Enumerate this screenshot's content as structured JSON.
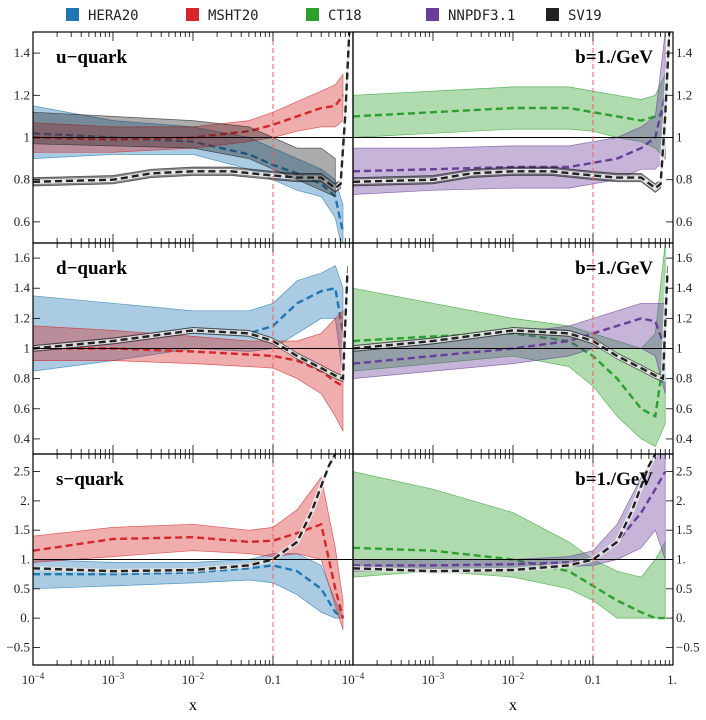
{
  "legend": [
    {
      "name": "HERA20",
      "color": "#1f77b4"
    },
    {
      "name": "MSHT20",
      "color": "#d62728"
    },
    {
      "name": "CT18",
      "color": "#2ca02c"
    },
    {
      "name": "NNPDF3.1",
      "color": "#6a3d9a"
    },
    {
      "name": "SV19",
      "color": "#222222"
    }
  ],
  "colors": {
    "HERA20": "#1f77b4",
    "MSHT20": "#d62728",
    "CT18": "#2ca02c",
    "NNPDF3.1": "#6a3d9a",
    "SV19": "#222222",
    "reference_line": "#000000",
    "vertical_marker": "#e06666"
  },
  "xlabel": "x",
  "panel_labels": {
    "u": "u−quark",
    "d": "d−quark",
    "s": "s−quark",
    "b": "b=1./GeV"
  },
  "x_tick_labels": [
    "10",
    "10",
    "10",
    "0.1",
    "1."
  ],
  "x_tick_exponents": [
    "−4",
    "−3",
    "−2",
    "",
    ""
  ],
  "chart_data": [
    {
      "type": "line",
      "panel": "u-quark, left",
      "x_scale": "log",
      "xlim": [
        0.0001,
        1
      ],
      "ylim": [
        0.5,
        1.5
      ],
      "y_ticks": [
        "0.6",
        "0.8",
        "1",
        "1.2",
        "1.4"
      ],
      "reference_y": 1,
      "vertical_line_x": 0.1,
      "series": [
        {
          "name": "HERA20",
          "x": [
            0.0001,
            0.001,
            0.01,
            0.05,
            0.1,
            0.2,
            0.4,
            0.6,
            0.75
          ],
          "y": [
            1.02,
            1.0,
            0.98,
            0.92,
            0.87,
            0.83,
            0.78,
            0.72,
            0.55
          ],
          "lo": [
            0.9,
            0.92,
            0.92,
            0.85,
            0.8,
            0.75,
            0.72,
            0.62,
            0.45
          ],
          "hi": [
            1.15,
            1.08,
            1.05,
            1.0,
            0.95,
            0.9,
            0.85,
            0.8,
            0.68
          ]
        },
        {
          "name": "MSHT20",
          "x": [
            0.0001,
            0.001,
            0.01,
            0.05,
            0.1,
            0.2,
            0.4,
            0.6,
            0.75
          ],
          "y": [
            1.0,
            0.99,
            1.0,
            1.03,
            1.06,
            1.1,
            1.14,
            1.15,
            1.2
          ],
          "lo": [
            0.93,
            0.93,
            0.95,
            0.98,
            1.0,
            1.03,
            1.05,
            1.05,
            1.08
          ],
          "hi": [
            1.07,
            1.05,
            1.05,
            1.08,
            1.12,
            1.17,
            1.22,
            1.25,
            1.3
          ]
        },
        {
          "name": "SV19",
          "x": [
            0.0001,
            0.001,
            0.003,
            0.01,
            0.03,
            0.1,
            0.2,
            0.4,
            0.6,
            0.7,
            0.8,
            0.9
          ],
          "y": [
            0.79,
            0.8,
            0.83,
            0.84,
            0.84,
            0.82,
            0.81,
            0.81,
            0.76,
            0.78,
            1.1,
            1.5
          ],
          "lo": [
            0.77,
            0.78,
            0.81,
            0.82,
            0.82,
            0.8,
            0.79,
            0.79,
            0.74,
            0.76,
            1.05,
            1.45
          ],
          "hi": [
            0.81,
            0.82,
            0.85,
            0.86,
            0.86,
            0.84,
            0.83,
            0.83,
            0.78,
            0.8,
            1.15,
            1.55
          ]
        },
        {
          "name": "SV19 band",
          "x": [
            0.0001,
            0.001,
            0.01,
            0.05,
            0.1,
            0.2,
            0.4,
            0.6
          ],
          "y": [
            1.06,
            1.04,
            1.02,
            0.98,
            0.93,
            0.88,
            0.87,
            0.82
          ],
          "lo": [
            0.97,
            0.96,
            0.95,
            0.9,
            0.85,
            0.8,
            0.75,
            0.72
          ],
          "hi": [
            1.12,
            1.1,
            1.08,
            1.05,
            1.0,
            0.95,
            0.95,
            0.9
          ]
        }
      ]
    },
    {
      "type": "line",
      "panel": "u-quark, right",
      "x_scale": "log",
      "xlim": [
        0.0001,
        1
      ],
      "ylim": [
        0.5,
        1.5
      ],
      "y_ticks": [
        "0.6",
        "0.8",
        "1",
        "1.2",
        "1.4"
      ],
      "reference_y": 1,
      "vertical_line_x": 0.1,
      "series": [
        {
          "name": "CT18",
          "x": [
            0.0001,
            0.001,
            0.01,
            0.05,
            0.1,
            0.2,
            0.4,
            0.6,
            0.8
          ],
          "y": [
            1.1,
            1.12,
            1.14,
            1.14,
            1.12,
            1.1,
            1.08,
            1.1,
            1.12
          ],
          "lo": [
            1.0,
            1.02,
            1.04,
            1.04,
            1.03,
            1.0,
            0.98,
            0.95,
            0.9
          ],
          "hi": [
            1.2,
            1.22,
            1.24,
            1.24,
            1.22,
            1.2,
            1.18,
            1.2,
            1.3
          ]
        },
        {
          "name": "NNPDF3.1",
          "x": [
            0.0001,
            0.001,
            0.01,
            0.05,
            0.1,
            0.2,
            0.4,
            0.6,
            0.8
          ],
          "y": [
            0.84,
            0.85,
            0.86,
            0.86,
            0.88,
            0.9,
            0.95,
            1.0,
            1.2
          ],
          "lo": [
            0.73,
            0.75,
            0.76,
            0.76,
            0.78,
            0.8,
            0.85,
            0.85,
            0.9
          ],
          "hi": [
            0.95,
            0.95,
            0.96,
            0.96,
            0.98,
            1.0,
            1.05,
            1.1,
            1.5
          ]
        },
        {
          "name": "SV19",
          "x": [
            0.0001,
            0.001,
            0.003,
            0.01,
            0.03,
            0.1,
            0.2,
            0.4,
            0.6,
            0.7,
            0.8,
            0.9
          ],
          "y": [
            0.79,
            0.8,
            0.83,
            0.84,
            0.84,
            0.82,
            0.81,
            0.81,
            0.76,
            0.78,
            1.1,
            1.5
          ],
          "lo": [
            0.77,
            0.78,
            0.81,
            0.82,
            0.82,
            0.8,
            0.79,
            0.79,
            0.74,
            0.76,
            1.05,
            1.45
          ],
          "hi": [
            0.81,
            0.82,
            0.85,
            0.86,
            0.86,
            0.84,
            0.83,
            0.83,
            0.78,
            0.8,
            1.15,
            1.55
          ]
        }
      ]
    },
    {
      "type": "line",
      "panel": "d-quark, left",
      "x_scale": "log",
      "xlim": [
        0.0001,
        1
      ],
      "ylim": [
        0.3,
        1.7
      ],
      "y_ticks": [
        "0.4",
        "0.6",
        "0.8",
        "1",
        "1.2",
        "1.4",
        "1.6"
      ],
      "reference_y": 1,
      "vertical_line_x": 0.1,
      "series": [
        {
          "name": "HERA20",
          "x": [
            0.0001,
            0.001,
            0.01,
            0.05,
            0.1,
            0.2,
            0.4,
            0.6,
            0.75
          ],
          "y": [
            1.0,
            1.05,
            1.12,
            1.1,
            1.15,
            1.3,
            1.38,
            1.4,
            1.1
          ],
          "lo": [
            0.85,
            0.92,
            1.0,
            0.98,
            1.0,
            1.1,
            1.2,
            1.2,
            0.8
          ],
          "hi": [
            1.35,
            1.3,
            1.25,
            1.25,
            1.3,
            1.45,
            1.5,
            1.55,
            1.4
          ]
        },
        {
          "name": "MSHT20",
          "x": [
            0.0001,
            0.001,
            0.01,
            0.05,
            0.1,
            0.2,
            0.4,
            0.6,
            0.75
          ],
          "y": [
            1.0,
            1.0,
            0.98,
            0.96,
            0.95,
            0.92,
            0.85,
            0.78,
            0.75
          ],
          "lo": [
            0.92,
            0.92,
            0.9,
            0.88,
            0.87,
            0.8,
            0.7,
            0.55,
            0.45
          ],
          "hi": [
            1.15,
            1.12,
            1.08,
            1.05,
            1.05,
            1.05,
            1.1,
            1.2,
            1.25
          ]
        },
        {
          "name": "SV19",
          "x": [
            0.0001,
            0.001,
            0.01,
            0.05,
            0.1,
            0.2,
            0.4,
            0.6,
            0.75,
            0.85
          ],
          "y": [
            1.0,
            1.05,
            1.12,
            1.1,
            1.05,
            0.95,
            0.87,
            0.82,
            0.8,
            1.5
          ],
          "lo": [
            0.98,
            1.03,
            1.1,
            1.08,
            1.03,
            0.93,
            0.85,
            0.8,
            0.78,
            1.45
          ],
          "hi": [
            1.02,
            1.07,
            1.14,
            1.12,
            1.07,
            0.97,
            0.89,
            0.84,
            0.82,
            1.55
          ]
        }
      ]
    },
    {
      "type": "line",
      "panel": "d-quark, right",
      "x_scale": "log",
      "xlim": [
        0.0001,
        1
      ],
      "ylim": [
        0.3,
        1.7
      ],
      "y_ticks": [
        "0.4",
        "0.6",
        "0.8",
        "1",
        "1.2",
        "1.4",
        "1.6"
      ],
      "reference_y": 1,
      "vertical_line_x": 0.1,
      "series": [
        {
          "name": "CT18",
          "x": [
            0.0001,
            0.001,
            0.01,
            0.05,
            0.1,
            0.2,
            0.4,
            0.6,
            0.8
          ],
          "y": [
            1.05,
            1.08,
            1.1,
            1.05,
            0.95,
            0.8,
            0.6,
            0.55,
            1.0
          ],
          "lo": [
            0.85,
            0.9,
            0.95,
            0.88,
            0.75,
            0.55,
            0.4,
            0.35,
            0.5
          ],
          "hi": [
            1.4,
            1.3,
            1.2,
            1.15,
            1.1,
            1.05,
            1.0,
            1.1,
            1.7
          ]
        },
        {
          "name": "NNPDF3.1",
          "x": [
            0.0001,
            0.001,
            0.01,
            0.05,
            0.1,
            0.2,
            0.4,
            0.6,
            0.8
          ],
          "y": [
            0.9,
            0.95,
            1.0,
            1.05,
            1.1,
            1.15,
            1.2,
            1.18,
            1.0
          ],
          "lo": [
            0.8,
            0.85,
            0.9,
            0.95,
            1.0,
            1.0,
            1.0,
            0.95,
            0.7
          ],
          "hi": [
            1.0,
            1.05,
            1.1,
            1.15,
            1.2,
            1.25,
            1.3,
            1.3,
            1.3
          ]
        },
        {
          "name": "SV19",
          "x": [
            0.0001,
            0.001,
            0.01,
            0.05,
            0.1,
            0.2,
            0.4,
            0.6,
            0.75,
            0.85
          ],
          "y": [
            1.0,
            1.05,
            1.12,
            1.1,
            1.05,
            0.95,
            0.87,
            0.82,
            0.8,
            1.5
          ],
          "lo": [
            0.98,
            1.03,
            1.1,
            1.08,
            1.03,
            0.93,
            0.85,
            0.8,
            0.78,
            1.45
          ],
          "hi": [
            1.02,
            1.07,
            1.14,
            1.12,
            1.07,
            0.97,
            0.89,
            0.84,
            0.82,
            1.55
          ]
        }
      ]
    },
    {
      "type": "line",
      "panel": "s-quark, left",
      "x_scale": "log",
      "xlim": [
        0.0001,
        1
      ],
      "ylim": [
        -0.8,
        2.8
      ],
      "y_ticks": [
        "−0.5",
        "0.",
        "0.5",
        "1.",
        "1.5",
        "2.",
        "2.5"
      ],
      "reference_y": 1,
      "vertical_line_x": 0.1,
      "series": [
        {
          "name": "HERA20",
          "x": [
            0.0001,
            0.001,
            0.01,
            0.05,
            0.1,
            0.2,
            0.4,
            0.6,
            0.75
          ],
          "y": [
            0.75,
            0.75,
            0.78,
            0.85,
            0.9,
            0.8,
            0.5,
            0.1,
            0.0
          ],
          "lo": [
            0.5,
            0.55,
            0.6,
            0.65,
            0.6,
            0.4,
            0.1,
            0.0,
            0.0
          ],
          "hi": [
            1.0,
            0.95,
            0.95,
            1.0,
            1.1,
            1.1,
            0.9,
            0.3,
            0.0
          ]
        },
        {
          "name": "MSHT20",
          "x": [
            0.0001,
            0.001,
            0.01,
            0.05,
            0.1,
            0.2,
            0.4,
            0.6,
            0.75
          ],
          "y": [
            1.15,
            1.35,
            1.38,
            1.3,
            1.32,
            1.45,
            1.6,
            0.5,
            0.0
          ],
          "lo": [
            0.95,
            1.05,
            1.15,
            1.1,
            1.05,
            1.1,
            1.0,
            0.2,
            -0.2
          ],
          "hi": [
            1.4,
            1.55,
            1.6,
            1.5,
            1.55,
            1.85,
            2.4,
            1.2,
            0.3
          ]
        },
        {
          "name": "SV19",
          "x": [
            0.0001,
            0.001,
            0.01,
            0.05,
            0.1,
            0.2,
            0.3,
            0.5,
            0.6
          ],
          "y": [
            0.85,
            0.8,
            0.82,
            0.9,
            1.0,
            1.3,
            1.8,
            2.6,
            2.8
          ],
          "lo": [
            0.82,
            0.77,
            0.79,
            0.87,
            0.97,
            1.27,
            1.77,
            2.57,
            2.77
          ],
          "hi": [
            0.88,
            0.83,
            0.85,
            0.93,
            1.03,
            1.33,
            1.83,
            2.63,
            2.83
          ]
        }
      ]
    },
    {
      "type": "line",
      "panel": "s-quark, right",
      "x_scale": "log",
      "xlim": [
        0.0001,
        1
      ],
      "ylim": [
        -0.8,
        2.8
      ],
      "y_ticks": [
        "−0.5",
        "0.",
        "0.5",
        "1.",
        "1.5",
        "2.",
        "2.5"
      ],
      "reference_y": 1,
      "vertical_line_x": 0.1,
      "series": [
        {
          "name": "CT18",
          "x": [
            0.0001,
            0.001,
            0.01,
            0.05,
            0.1,
            0.2,
            0.4,
            0.6,
            0.8
          ],
          "y": [
            1.2,
            1.15,
            1.0,
            0.8,
            0.55,
            0.3,
            0.1,
            0.0,
            0.0
          ],
          "lo": [
            0.7,
            0.8,
            0.7,
            0.5,
            0.3,
            0.0,
            0.0,
            0.0,
            0.0
          ],
          "hi": [
            2.5,
            2.2,
            1.8,
            1.3,
            1.0,
            0.8,
            0.7,
            1.0,
            1.3
          ]
        },
        {
          "name": "NNPDF3.1",
          "x": [
            0.0001,
            0.001,
            0.01,
            0.05,
            0.1,
            0.2,
            0.4,
            0.6,
            0.8
          ],
          "y": [
            0.9,
            0.9,
            0.92,
            0.95,
            1.0,
            1.3,
            1.8,
            2.2,
            2.5
          ],
          "lo": [
            0.8,
            0.82,
            0.85,
            0.88,
            0.9,
            1.0,
            1.2,
            1.5,
            1.0
          ],
          "hi": [
            1.0,
            1.0,
            1.0,
            1.05,
            1.15,
            1.6,
            2.4,
            2.8,
            3.0
          ]
        },
        {
          "name": "SV19",
          "x": [
            0.0001,
            0.001,
            0.01,
            0.05,
            0.1,
            0.2,
            0.3,
            0.5,
            0.6
          ],
          "y": [
            0.85,
            0.8,
            0.82,
            0.9,
            1.0,
            1.3,
            1.8,
            2.6,
            2.8
          ],
          "lo": [
            0.82,
            0.77,
            0.79,
            0.87,
            0.97,
            1.27,
            1.77,
            2.57,
            2.77
          ],
          "hi": [
            0.88,
            0.83,
            0.85,
            0.93,
            1.03,
            1.33,
            1.83,
            2.63,
            2.83
          ]
        }
      ]
    }
  ]
}
